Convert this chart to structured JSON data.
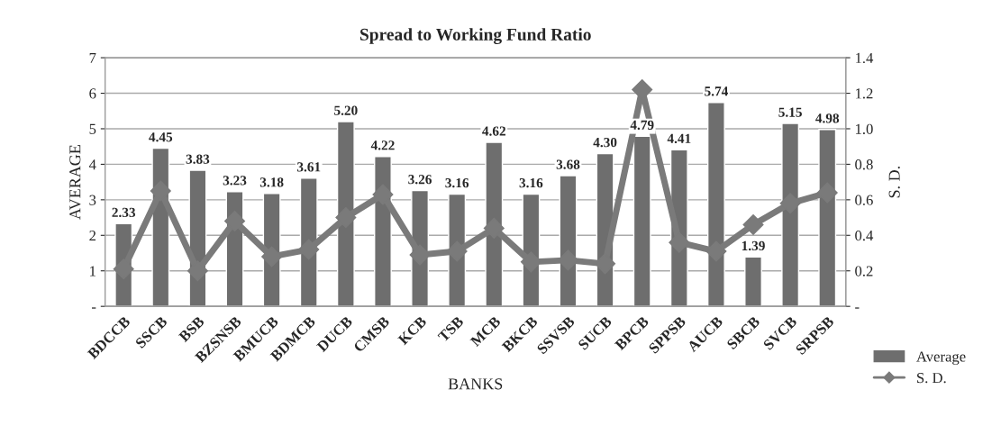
{
  "chart_data": {
    "type": "bar",
    "title": "Spread to Working Fund Ratio",
    "xlabel": "BANKS",
    "ylabel": "AVERAGE",
    "y2label": "S. D.",
    "categories": [
      "BDCCB",
      "SSCB",
      "BSB",
      "BZSNSB",
      "BMUCB",
      "BDMCB",
      "DUCB",
      "CMSB",
      "KCB",
      "TSB",
      "MCB",
      "BKCB",
      "SSVSB",
      "SUCB",
      "BPCB",
      "SPPSB",
      "AUCB",
      "SBCB",
      "SVCB",
      "SRPSB"
    ],
    "series": [
      {
        "name": "Average",
        "color": "#6e6e6e",
        "values": [
          2.33,
          4.45,
          3.83,
          3.23,
          3.18,
          3.61,
          5.2,
          4.22,
          3.26,
          3.16,
          4.62,
          3.16,
          3.68,
          4.3,
          4.79,
          4.41,
          5.74,
          1.39,
          5.15,
          4.98
        ],
        "value_labels": [
          "2.33",
          "4.45",
          "3.83",
          "3.23",
          "3.18",
          "3.61",
          "5.20",
          "4.22",
          "3.26",
          "3.16",
          "4.62",
          "3.16",
          "3.68",
          "4.30",
          "4.79",
          "4.41",
          "5.74",
          "1.39",
          "5.15",
          "4.98"
        ]
      },
      {
        "name": "S. D.",
        "type": "line",
        "axis": "y2",
        "color": "#7a7a7a",
        "marker": "diamond",
        "line_style": "solid",
        "values": [
          0.21,
          0.65,
          0.2,
          0.48,
          0.28,
          0.32,
          0.5,
          0.63,
          0.29,
          0.31,
          0.44,
          0.25,
          0.26,
          0.24,
          1.22,
          0.36,
          0.31,
          0.46,
          0.58,
          0.64
        ]
      }
    ],
    "ylim": [
      0,
      7
    ],
    "yticks": [
      {
        "value": 0,
        "label": "-"
      },
      1,
      2,
      3,
      4,
      5,
      6,
      7
    ],
    "y2lim": [
      0,
      1.4
    ],
    "y2ticks": [
      {
        "value": 0,
        "label": "-"
      },
      0.2,
      0.4,
      0.6,
      0.8,
      {
        "value": 1.0,
        "label": "1.0"
      },
      1.2,
      1.4
    ],
    "grid": "y",
    "legend": "right"
  }
}
